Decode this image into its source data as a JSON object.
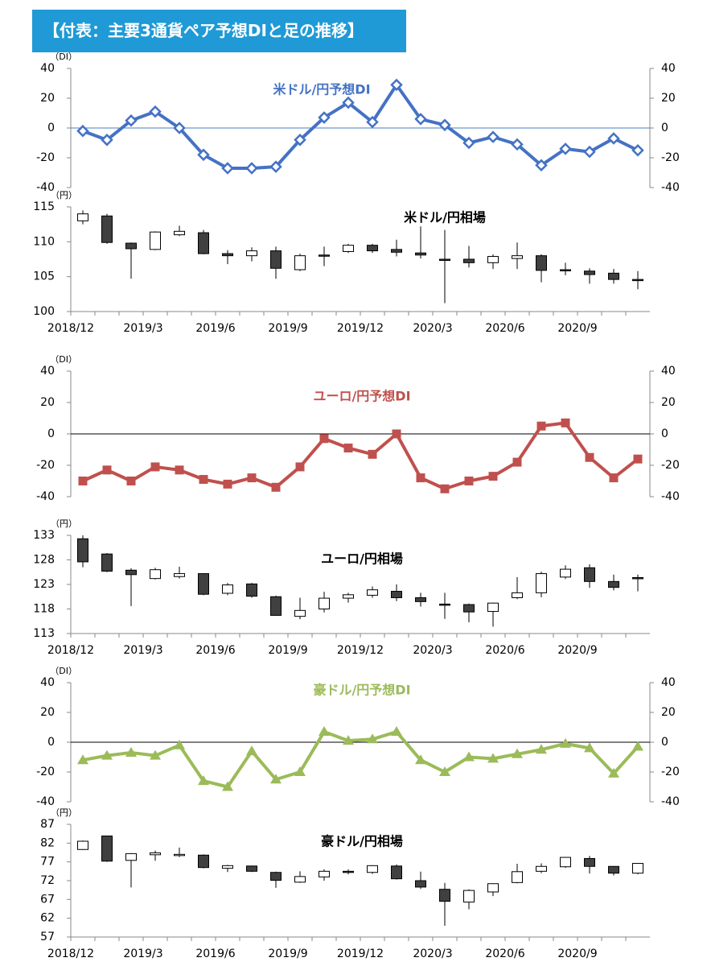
{
  "header": {
    "title": "【付表：主要3通貨ペア予想DIと足の推移】"
  },
  "chart_data": [
    {
      "type": "line",
      "y_unit": "（DI）",
      "ylim": [
        -40,
        40
      ],
      "yticks": [
        -40,
        -20,
        0,
        20,
        40
      ],
      "y2lim": [
        -40,
        40
      ],
      "y2ticks": [
        -40,
        -20,
        0,
        20,
        40
      ],
      "y2_negative_color": "#e00000",
      "ref_line": {
        "value": 0,
        "color": "#4a7fc1"
      },
      "series": [
        {
          "name": "米ドル/円予想DI",
          "color": "#4472c4",
          "marker": "diamond",
          "values": [
            -2,
            -8,
            5,
            11,
            0,
            -18,
            -27,
            -27,
            -26,
            -8,
            7,
            17,
            4,
            29,
            6,
            2,
            -10,
            -6,
            -11,
            -25,
            -14,
            -16,
            -7,
            -15
          ]
        }
      ]
    },
    {
      "type": "candlestick",
      "title": "米ドル/円相場",
      "y_unit": "（円）",
      "ylim": [
        100,
        115
      ],
      "yticks": [
        100,
        105,
        110,
        115
      ],
      "up_color": "#ffffff",
      "down_color": "#404040",
      "categories": [
        "2018/12",
        null,
        null,
        "2019/3",
        null,
        null,
        "2019/6",
        null,
        null,
        "2019/9",
        null,
        null,
        "2019/12",
        null,
        null,
        "2020/3",
        null,
        null,
        "2020/6",
        null,
        null,
        "2020/9",
        null,
        null
      ],
      "open": [
        113.0,
        113.7,
        109.8,
        108.9,
        111.0,
        111.3,
        108.3,
        108.0,
        108.7,
        106.0,
        108.1,
        108.6,
        109.5,
        108.9,
        108.4,
        107.5,
        107.5,
        107.0,
        107.6,
        108.0,
        106.0,
        105.8,
        105.5,
        104.6
      ],
      "high": [
        114.5,
        114.0,
        109.9,
        111.5,
        112.3,
        111.7,
        108.8,
        109.2,
        109.3,
        108.3,
        109.3,
        109.7,
        109.7,
        110.3,
        112.2,
        111.7,
        109.4,
        108.2,
        109.9,
        108.2,
        107.0,
        106.2,
        106.1,
        105.8
      ],
      "low": [
        112.5,
        109.7,
        104.7,
        108.8,
        110.8,
        108.2,
        106.8,
        107.2,
        104.7,
        105.8,
        106.5,
        108.4,
        108.4,
        107.9,
        107.6,
        101.2,
        106.3,
        106.1,
        106.1,
        104.2,
        105.2,
        104.0,
        104.0,
        103.2
      ],
      "close": [
        114.0,
        109.9,
        109.0,
        111.4,
        111.5,
        108.3,
        108.0,
        108.7,
        106.2,
        108.0,
        108.0,
        109.5,
        108.7,
        108.5,
        108.1,
        107.4,
        107.0,
        107.9,
        108.0,
        105.9,
        105.9,
        105.3,
        104.6,
        104.5
      ]
    },
    {
      "type": "line",
      "y_unit": "（DI）",
      "ylim": [
        -40,
        40
      ],
      "yticks": [
        -40,
        -20,
        0,
        20,
        40
      ],
      "y2lim": [
        -40,
        40
      ],
      "y2ticks": [
        -40,
        -20,
        0,
        20,
        40
      ],
      "y2_negative_color": "#e00000",
      "ref_line": {
        "value": 0,
        "color": "#000000"
      },
      "series": [
        {
          "name": "ユーロ/円予想DI",
          "color": "#c0504d",
          "marker": "square",
          "values": [
            -30,
            -23,
            -30,
            -21,
            -23,
            -29,
            -32,
            -28,
            -34,
            -21,
            -3,
            -9,
            -13,
            0,
            -28,
            -35,
            -30,
            -27,
            -18,
            5,
            7,
            -15,
            -28,
            -16
          ]
        }
      ]
    },
    {
      "type": "candlestick",
      "title": "ユーロ/円相場",
      "y_unit": "（円）",
      "ylim": [
        113,
        133
      ],
      "yticks": [
        113,
        118,
        123,
        128,
        133
      ],
      "up_color": "#ffffff",
      "down_color": "#404040",
      "categories": [
        "2018/12",
        null,
        null,
        "2019/3",
        null,
        null,
        "2019/6",
        null,
        null,
        "2019/9",
        null,
        null,
        "2019/12",
        null,
        null,
        "2020/3",
        null,
        null,
        "2020/6",
        null,
        null,
        "2020/9",
        null,
        null
      ],
      "open": [
        132.3,
        129.2,
        125.9,
        124.2,
        124.6,
        125.2,
        121.2,
        123.1,
        120.5,
        116.5,
        118.0,
        120.2,
        120.8,
        121.6,
        120.3,
        119.0,
        118.9,
        117.5,
        120.3,
        121.3,
        124.5,
        126.4,
        123.6,
        124.4
      ],
      "high": [
        133.0,
        129.4,
        126.3,
        126.4,
        126.6,
        125.3,
        123.3,
        123.3,
        120.7,
        120.3,
        121.5,
        121.3,
        122.6,
        123.0,
        121.3,
        121.3,
        119.1,
        119.3,
        124.5,
        125.6,
        126.9,
        127.1,
        125.0,
        125.0
      ],
      "low": [
        126.5,
        125.5,
        118.6,
        124.0,
        124.2,
        120.8,
        120.8,
        120.3,
        116.6,
        115.9,
        117.3,
        119.3,
        120.3,
        119.6,
        118.5,
        116.0,
        115.3,
        114.4,
        120.0,
        120.4,
        124.1,
        122.3,
        121.8,
        121.6
      ],
      "close": [
        127.6,
        125.7,
        125.0,
        126.0,
        125.2,
        121.0,
        122.9,
        120.6,
        116.7,
        117.7,
        120.2,
        120.9,
        121.9,
        120.3,
        119.5,
        118.8,
        117.4,
        119.2,
        121.3,
        125.2,
        126.1,
        123.6,
        122.4,
        124.3
      ]
    },
    {
      "type": "line",
      "y_unit": "（DI）",
      "ylim": [
        -40,
        40
      ],
      "yticks": [
        -40,
        -20,
        0,
        20,
        40
      ],
      "y2lim": [
        -40,
        40
      ],
      "y2ticks": [
        -40,
        -20,
        0,
        20,
        40
      ],
      "y2_negative_color": "#e00000",
      "ref_line": {
        "value": 0,
        "color": "#000000"
      },
      "series": [
        {
          "name": "豪ドル/円予想DI",
          "color": "#9bbb59",
          "marker": "triangle",
          "values": [
            -12,
            -9,
            -7,
            -9,
            -2,
            -26,
            -30,
            -6,
            -25,
            -20,
            7,
            1,
            2,
            7,
            -12,
            -20,
            -10,
            -11,
            -8,
            -5,
            -1,
            -4,
            -21,
            -3
          ]
        }
      ]
    },
    {
      "type": "candlestick",
      "title": "豪ドル/円相場",
      "y_unit": "（円）",
      "ylim": [
        57,
        87
      ],
      "yticks": [
        57,
        62,
        67,
        72,
        77,
        82,
        87
      ],
      "up_color": "#ffffff",
      "down_color": "#404040",
      "categories": [
        "2018/12",
        null,
        null,
        "2019/3",
        null,
        null,
        "2019/6",
        null,
        null,
        "2019/9",
        null,
        null,
        "2019/12",
        null,
        null,
        "2020/3",
        null,
        null,
        "2020/6",
        null,
        null,
        "2020/9",
        null,
        null
      ],
      "open": [
        80.3,
        83.9,
        77.4,
        78.9,
        78.7,
        78.8,
        75.3,
        75.9,
        74.2,
        71.6,
        73.0,
        74.5,
        74.2,
        75.9,
        72.0,
        69.7,
        66.3,
        69.0,
        71.5,
        74.5,
        75.7,
        77.9,
        75.8,
        74.0
      ],
      "high": [
        82.7,
        84.0,
        79.3,
        80.0,
        80.8,
        79.0,
        76.2,
        76.0,
        74.4,
        74.5,
        75.0,
        75.0,
        76.1,
        76.3,
        74.4,
        71.4,
        69.7,
        71.3,
        76.5,
        76.6,
        78.3,
        78.6,
        75.8,
        76.6
      ],
      "low": [
        80.2,
        77.0,
        70.2,
        77.3,
        78.3,
        75.3,
        74.3,
        74.3,
        70.1,
        71.4,
        72.0,
        73.7,
        73.8,
        72.3,
        69.8,
        60.0,
        64.4,
        67.9,
        71.3,
        74.0,
        75.4,
        73.9,
        73.4,
        73.7
      ],
      "close": [
        82.5,
        77.2,
        79.2,
        79.4,
        79.0,
        75.5,
        76.0,
        74.5,
        72.1,
        73.1,
        74.5,
        74.2,
        76.0,
        72.5,
        70.3,
        66.5,
        69.4,
        71.2,
        74.4,
        75.8,
        78.2,
        75.8,
        74.0,
        76.6
      ]
    }
  ]
}
